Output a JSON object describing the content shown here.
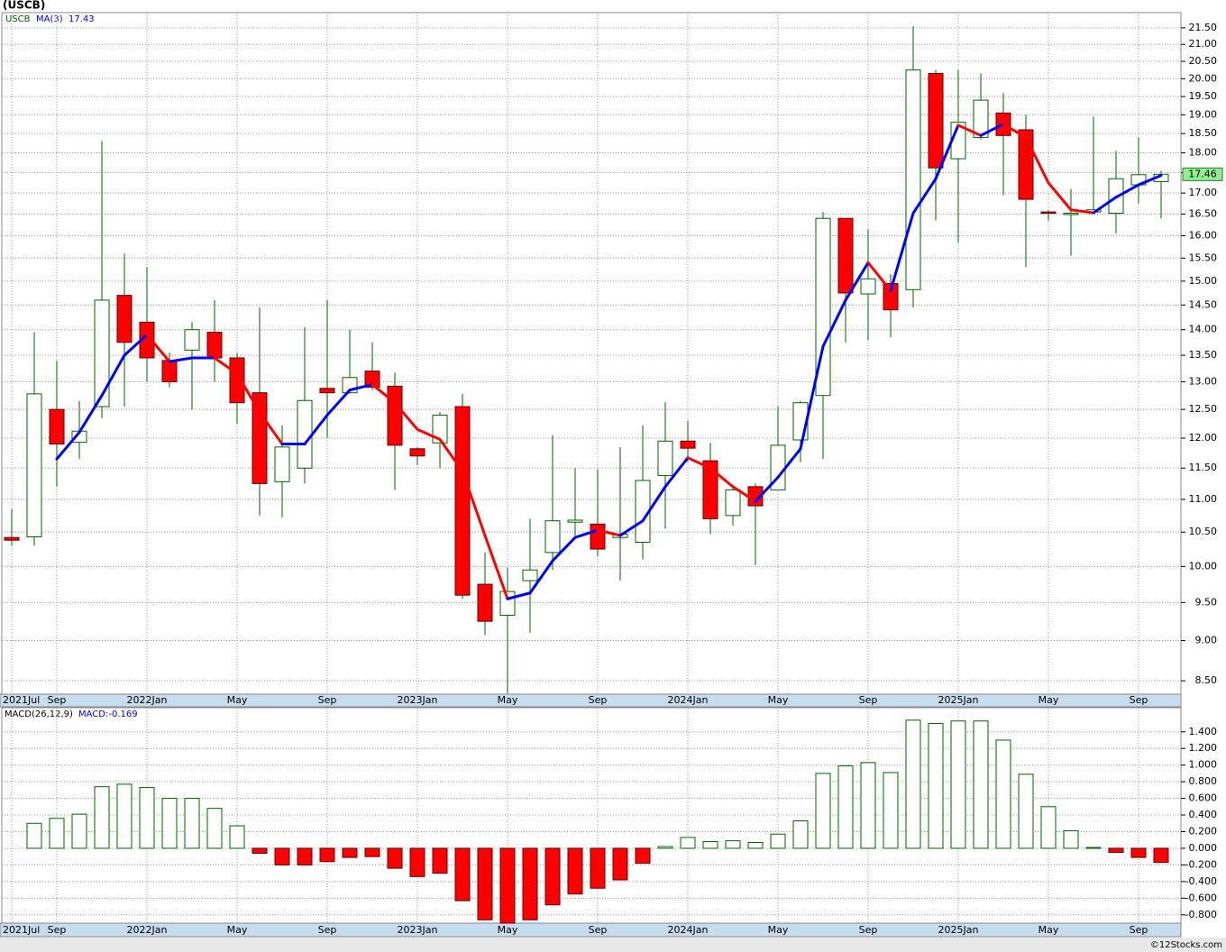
{
  "chart_data": [
    {
      "type": "candlestick",
      "title": "(USCB)",
      "ticker": "USCB",
      "source": "©12Stocks.com",
      "categories": [
        "2021Jul",
        null,
        "Sep",
        null,
        null,
        null,
        "2022Jan",
        null,
        null,
        null,
        "May",
        null,
        null,
        null,
        "Sep",
        null,
        null,
        null,
        "2023Jan",
        null,
        null,
        null,
        "May",
        null,
        null,
        null,
        "Sep",
        null,
        null,
        null,
        "2024Jan",
        null,
        null,
        null,
        "May",
        null,
        null,
        null,
        "Sep",
        null,
        null,
        null,
        "2025Jan",
        null,
        null,
        null,
        "May",
        null,
        null,
        null,
        "Sep",
        null
      ],
      "open": [
        10.42,
        10.43,
        12.5,
        11.93,
        12.55,
        14.7,
        14.15,
        13.4,
        13.6,
        13.95,
        13.45,
        12.8,
        11.28,
        11.5,
        12.88,
        12.8,
        13.2,
        12.92,
        11.82,
        11.92,
        12.55,
        9.75,
        9.33,
        9.8,
        10.2,
        10.65,
        10.62,
        10.42,
        10.35,
        11.38,
        11.95,
        11.62,
        10.75,
        11.2,
        11.15,
        11.97,
        12.75,
        16.4,
        14.73,
        14.95,
        14.82,
        20.15,
        17.85,
        18.4,
        19.05,
        18.6,
        16.55,
        16.5,
        16.55,
        16.52,
        17.2,
        17.28
      ],
      "high": [
        10.85,
        13.95,
        13.4,
        12.65,
        18.3,
        15.6,
        15.3,
        13.55,
        14.15,
        14.6,
        13.55,
        14.45,
        12.22,
        14.05,
        14.6,
        14.0,
        13.75,
        13.17,
        11.85,
        12.45,
        12.78,
        10.2,
        9.98,
        10.7,
        12.05,
        11.5,
        11.48,
        11.85,
        12.22,
        12.63,
        12.3,
        11.92,
        11.2,
        11.25,
        12.55,
        12.65,
        16.55,
        16.4,
        16.15,
        15.15,
        21.55,
        20.25,
        20.25,
        20.15,
        19.6,
        19.0,
        16.6,
        17.1,
        18.95,
        18.05,
        18.4,
        17.55
      ],
      "low": [
        10.3,
        10.3,
        11.2,
        11.65,
        12.35,
        12.55,
        13.0,
        12.9,
        12.5,
        13.0,
        12.25,
        10.75,
        10.72,
        11.25,
        12.0,
        12.78,
        12.85,
        11.15,
        11.55,
        11.5,
        9.55,
        9.07,
        8.35,
        9.1,
        9.95,
        10.45,
        10.15,
        9.8,
        10.1,
        10.55,
        11.6,
        10.47,
        10.6,
        10.02,
        11.15,
        11.6,
        11.65,
        13.75,
        13.8,
        13.85,
        14.45,
        16.35,
        15.85,
        18.35,
        16.95,
        15.3,
        16.35,
        15.55,
        16.55,
        16.05,
        16.75,
        16.4
      ],
      "close": [
        10.38,
        12.78,
        11.9,
        12.12,
        14.6,
        13.75,
        13.45,
        13.0,
        14.0,
        13.45,
        12.62,
        11.25,
        11.85,
        12.66,
        12.8,
        13.08,
        12.9,
        11.88,
        11.7,
        12.4,
        9.6,
        9.25,
        9.65,
        9.95,
        10.67,
        10.68,
        10.25,
        10.47,
        11.3,
        11.95,
        11.83,
        10.7,
        11.15,
        10.9,
        11.88,
        12.62,
        16.4,
        14.75,
        15.05,
        14.4,
        20.25,
        17.62,
        18.8,
        19.4,
        18.45,
        16.85,
        16.52,
        16.52,
        16.6,
        17.35,
        17.45,
        17.46
      ],
      "up_color": "#006400",
      "down_color": "#ff0000",
      "overlay": {
        "name": "MA(3)",
        "rising_color": "#0000ff",
        "falling_color": "#ff0000",
        "values": [
          null,
          null,
          11.65,
          12.1,
          12.75,
          13.5,
          13.9,
          13.38,
          13.45,
          13.45,
          13.15,
          12.45,
          11.9,
          11.9,
          12.4,
          12.85,
          12.95,
          12.62,
          12.15,
          11.98,
          11.45,
          10.45,
          9.55,
          9.63,
          10.08,
          10.42,
          10.53,
          10.45,
          10.67,
          11.2,
          11.67,
          11.5,
          11.2,
          10.97,
          11.35,
          11.82,
          13.67,
          14.6,
          15.4,
          14.8,
          16.52,
          17.35,
          18.72,
          18.45,
          18.75,
          18.4,
          17.25,
          16.6,
          16.53,
          16.9,
          17.2,
          17.43
        ]
      },
      "log_scale": true,
      "grid": true,
      "ylim": [
        8.34,
        21.97
      ],
      "yticks": [
        {
          "value": 8.5,
          "label": "8.50"
        },
        {
          "value": 9,
          "label": "9.00"
        },
        {
          "value": 9.5,
          "label": "9.50"
        },
        {
          "value": 10,
          "label": "10.00"
        },
        {
          "value": 10.5,
          "label": "10.50"
        },
        {
          "value": 11,
          "label": "11.00"
        },
        {
          "value": 11.5,
          "label": "11.50"
        },
        {
          "value": 12,
          "label": "12.00"
        },
        {
          "value": 12.5,
          "label": "12.50"
        },
        {
          "value": 13,
          "label": "13.00"
        },
        {
          "value": 13.5,
          "label": "13.50"
        },
        {
          "value": 14,
          "label": "14.00"
        },
        {
          "value": 14.5,
          "label": "14.50"
        },
        {
          "value": 15,
          "label": "15.00"
        },
        {
          "value": 15.5,
          "label": "15.50"
        },
        {
          "value": 16,
          "label": "16.00"
        },
        {
          "value": 16.5,
          "label": "16.50"
        },
        {
          "value": 17,
          "label": "17.00"
        },
        {
          "value": 17.5,
          "label": "17.50"
        },
        {
          "value": 18,
          "label": "18.00"
        },
        {
          "value": 18.5,
          "label": "18.50"
        },
        {
          "value": 19,
          "label": "19.00"
        },
        {
          "value": 19.5,
          "label": "19.50"
        },
        {
          "value": 20,
          "label": "20.00"
        },
        {
          "value": 20.5,
          "label": "20.50"
        },
        {
          "value": 21,
          "label": "21.00"
        },
        {
          "value": 21.5,
          "label": "21.50"
        }
      ]
    },
    {
      "type": "histogram_bar",
      "name": "MACD(26,12,9)",
      "value_label": "MACD:-0.169",
      "up_color": "#006400",
      "down_color": "#ff0000",
      "values": [
        null,
        0.3,
        0.36,
        0.41,
        0.74,
        0.77,
        0.73,
        0.6,
        0.6,
        0.48,
        0.27,
        -0.06,
        -0.2,
        -0.2,
        -0.16,
        -0.11,
        -0.1,
        -0.24,
        -0.34,
        -0.3,
        -0.63,
        -0.86,
        -0.9,
        -0.86,
        -0.68,
        -0.55,
        -0.48,
        -0.38,
        -0.18,
        0.02,
        0.13,
        0.08,
        0.09,
        0.07,
        0.17,
        0.33,
        0.9,
        0.99,
        1.03,
        0.91,
        1.54,
        1.5,
        1.53,
        1.53,
        1.3,
        0.89,
        0.5,
        0.21,
        0.01,
        -0.05,
        -0.11,
        -0.17
      ],
      "grid": true,
      "ylim": [
        -0.9,
        1.69
      ],
      "yticks": [
        {
          "value": -0.8,
          "label": "-0.800"
        },
        {
          "value": -0.6,
          "label": "-0.600"
        },
        {
          "value": -0.4,
          "label": "-0.400"
        },
        {
          "value": -0.2,
          "label": "-0.200"
        },
        {
          "value": 0,
          "label": "0.000"
        },
        {
          "value": 0.2,
          "label": "0.200"
        },
        {
          "value": 0.4,
          "label": "0.400"
        },
        {
          "value": 0.6,
          "label": "0.600"
        },
        {
          "value": 0.8,
          "label": "0.800"
        },
        {
          "value": 1,
          "label": "1.000"
        },
        {
          "value": 1.2,
          "label": "1.200"
        },
        {
          "value": 1.4,
          "label": "1.400"
        }
      ]
    }
  ]
}
